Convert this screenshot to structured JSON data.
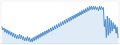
{
  "chart_data": {
    "type": "area",
    "color": "#4f8fcc",
    "tick_labels": false,
    "x": [
      0,
      1,
      2,
      3,
      4,
      5,
      6,
      7,
      8,
      9,
      10,
      11,
      12,
      13,
      14,
      15,
      16,
      17,
      18,
      19,
      20,
      21,
      22,
      23,
      24,
      25,
      26,
      27,
      28,
      29,
      30,
      31,
      32,
      33,
      34,
      35,
      36,
      37,
      38,
      39,
      40,
      41,
      42,
      43,
      44,
      45,
      46,
      47,
      48,
      49,
      50,
      51,
      52,
      53,
      54,
      55,
      56,
      57,
      58,
      59,
      60,
      61,
      62,
      63,
      64,
      65,
      66,
      67,
      68,
      69,
      70,
      71,
      72,
      73,
      74,
      75,
      76,
      77,
      78,
      79,
      80,
      81,
      82,
      83,
      84,
      85,
      86,
      87,
      88,
      89,
      90,
      91,
      92,
      93,
      94,
      95,
      96,
      97,
      98,
      99,
      100,
      101,
      102,
      103,
      104,
      105,
      106,
      107,
      108,
      109,
      110,
      111,
      112,
      113,
      114,
      115,
      116,
      117,
      118,
      119
    ],
    "values": [
      98,
      95,
      97,
      93,
      96,
      92,
      95,
      91,
      94,
      90,
      93,
      89,
      92,
      88,
      91,
      87,
      90,
      87,
      91,
      87,
      90,
      86,
      89,
      85,
      88,
      85,
      89,
      85,
      88,
      84,
      87,
      84,
      88,
      85,
      89,
      86,
      90,
      87,
      91,
      88,
      92,
      89,
      93,
      90,
      94,
      91,
      95,
      92,
      96,
      93,
      97,
      94,
      98,
      95,
      99,
      96,
      100,
      97,
      101,
      98,
      102,
      99,
      103,
      100,
      104,
      101,
      105,
      102,
      106,
      103,
      107,
      104,
      108,
      105,
      109,
      106,
      110,
      107,
      111,
      108,
      112,
      109,
      113,
      110,
      114,
      111,
      115,
      112,
      116,
      113,
      117,
      114,
      117,
      114,
      117,
      114,
      117,
      114,
      116,
      113,
      117,
      114,
      117,
      114,
      116,
      98,
      105,
      88,
      108,
      90,
      106,
      92,
      104,
      94,
      102,
      96,
      100,
      92,
      98,
      88
    ],
    "xlim": [
      -1,
      120
    ],
    "ylim": [
      82,
      122
    ]
  }
}
